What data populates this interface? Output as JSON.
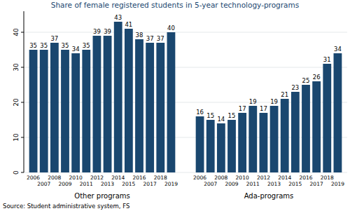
{
  "chart_data": {
    "type": "bar",
    "title": "Share of female registered students in 5-year technology-programs",
    "source": "Source: Student administrative system, FS",
    "categories": [
      2006,
      2007,
      2008,
      2009,
      2010,
      2011,
      2012,
      2013,
      2014,
      2015,
      2016,
      2017,
      2018,
      2019
    ],
    "series": [
      {
        "name": "Other programs",
        "color": "#1a476f",
        "values": [
          35,
          35,
          37,
          35,
          34,
          35,
          39,
          39,
          43,
          41,
          38,
          37,
          37,
          40
        ]
      },
      {
        "name": "Ada-programs",
        "color": "#1a476f",
        "values": [
          16,
          15,
          14,
          15,
          17,
          19,
          17,
          19,
          21,
          23,
          25,
          26,
          31,
          34
        ]
      }
    ],
    "ylim": [
      0,
      46
    ],
    "yticks": [
      0,
      10,
      20,
      30,
      40
    ],
    "grid": true,
    "data_labels": true
  }
}
